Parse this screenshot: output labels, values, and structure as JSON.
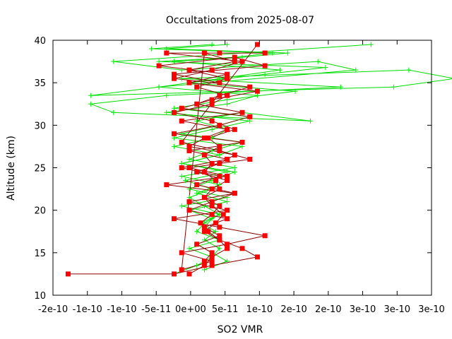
{
  "chart_data": {
    "type": "line",
    "title": "Occultations from 2025-08-07",
    "xlabel": "SO2 VMR",
    "ylabel": "Altitude (km)",
    "xlim": [
      -2e-10,
      3e-10
    ],
    "ylim": [
      10,
      40
    ],
    "grid": false,
    "legend": "none",
    "x_tick_labels": [
      "-2e-10",
      "-1e-10",
      "-1e-10",
      "-5e-11",
      "0e+00",
      "5e-11",
      "1e-10",
      "2e-10",
      "2e-10",
      "3e-10",
      "3e-10",
      "3e-10"
    ],
    "y_tick_labels": [
      "10",
      "15",
      "20",
      "25",
      "30",
      "35",
      "40"
    ],
    "series": [
      {
        "color": "#ff0000",
        "line_color": "#8b0000",
        "marker": "square",
        "profiles": [
          {
            "x": [
              -1.8e-10,
              -4e-11,
              1e-11,
              7e-11,
              5e-11,
              2e-11,
              0,
              1.5e-11,
              2.5e-11,
              1e-11,
              0,
              2e-11,
              1.5e-11,
              0,
              1e-11,
              0,
              2e-11,
              5e-12,
              4e-11,
              1e-11,
              -4e-11,
              1e-11,
              3e-11,
              -1e-11,
              3e-11,
              -2e-11,
              4e-11,
              0,
              -3e-11,
              1e-11,
              -3e-11,
              3e-11,
              8e-11,
              2e-11,
              -4e-11,
              3e-11,
              -2e-11,
              4e-11,
              -5e-11,
              3e-11,
              -2e-11,
              6e-11,
              2e-11,
              -3e-11,
              7e-11
            ],
            "y": [
              12.5,
              12.5,
              13.5,
              14.5,
              15.5,
              16.5,
              17.5,
              18.5,
              19.5,
              20.5,
              21.5,
              22.5,
              23.5,
              24.5,
              25.5,
              26.5,
              27.5,
              28.5,
              29.5,
              30.5,
              31.5,
              32.5,
              33.5,
              34.5,
              35.5,
              36.5,
              37.5,
              38.5,
              13,
              14,
              15,
              16,
              17,
              18,
              19,
              20,
              21,
              22,
              23,
              24,
              25,
              26,
              27,
              28,
              39.5
            ]
          },
          {
            "x": [
              -2e-11,
              0,
              1e-11,
              3e-11,
              2e-11,
              5e-12,
              -5e-12,
              1e-11,
              2e-11,
              0,
              1e-11,
              3e-11,
              -1e-11,
              2e-11,
              4e-11,
              -2e-11,
              0,
              3e-11,
              -3e-11,
              5e-11,
              -1e-11,
              2e-11,
              6e-11,
              -4e-11,
              1e-11,
              5e-11,
              -5e-11,
              2e-11,
              8e-11
            ],
            "y": [
              12.5,
              13.5,
              14.5,
              15.5,
              16.5,
              17.5,
              18.5,
              19.5,
              20.5,
              21.5,
              22.5,
              23.5,
              24.5,
              25.5,
              26.5,
              27.5,
              28.5,
              29.5,
              30.5,
              31.5,
              32.5,
              33.5,
              34.5,
              35.5,
              36.5,
              37.5,
              38.5,
              38.5,
              38.5
            ]
          },
          {
            "x": [
              0,
              1e-11,
              -1e-11,
              2e-11,
              0,
              3e-11,
              -2e-11,
              1e-11,
              4e-11,
              -1e-11,
              2e-11,
              -3e-11,
              3e-11,
              -2e-11,
              5e-11,
              -4e-11,
              2e-11,
              6e-11,
              -3e-11,
              1e-11,
              7e-11,
              -2e-11,
              3e-11,
              -6e-11,
              4e-11,
              8e-11,
              -4e-11,
              2e-11
            ],
            "y": [
              14,
              15,
              16,
              17,
              18,
              19,
              20,
              21,
              22,
              23,
              24,
              25,
              26,
              27,
              28,
              29,
              30,
              31,
              32,
              33,
              34,
              35,
              36,
              37,
              38,
              37,
              36,
              35
            ]
          }
        ]
      },
      {
        "color": "#00ee00",
        "line_color": "#00dd00",
        "marker": "plus",
        "profiles": [
          {
            "x": [
              -4e-11,
              -1e-11,
              1e-11,
              2e-11,
              0,
              1.5e-11,
              -5e-12,
              2e-11,
              0,
              -2e-11,
              1e-11,
              -2.5e-11,
              3e-11,
              -3e-11,
              2e-11,
              -4e-11,
              1e-11,
              3e-11,
              -1e-11,
              5e-11,
              1.4e-10,
              -1.2e-10,
              -1.5e-10,
              -5e-11,
              1.8e-10,
              -3e-11,
              2.7e-10,
              3.3e-10,
              2.5e-10,
              -1.5e-10,
              -6e-11,
              2e-10,
              1.5e-10,
              -3e-11,
              -1.2e-10,
              2.2e-10
            ],
            "y": [
              12.5,
              13.5,
              14.5,
              15.5,
              16.5,
              17.5,
              18.5,
              19.5,
              20.5,
              21.5,
              22.5,
              23.5,
              24.5,
              25.5,
              26.5,
              27.5,
              28.5,
              29.5,
              30.5,
              31.5,
              30.5,
              31.5,
              32.5,
              33.5,
              34.5,
              35.5,
              36.5,
              35.5,
              34.5,
              33.5,
              34.5,
              36.5,
              37.5,
              36.5,
              37.5,
              39.5
            ]
          },
          {
            "x": [
              0,
              3e-11,
              1e-11,
              -1e-11,
              2e-11,
              0,
              1e-11,
              -2e-11,
              3e-11,
              -1e-11,
              2e-11,
              -3e-11,
              4e-11,
              -2e-11,
              1e-11,
              5e-11,
              -3e-11,
              2e-11,
              6e-11,
              -4e-11,
              3e-11,
              1.2e-10,
              -2e-11,
              8e-11,
              1.6e-10,
              -6e-11,
              4e-11,
              9e-11,
              -7e-11,
              1e-11
            ],
            "y": [
              13,
              14,
              15,
              16,
              17,
              18,
              19,
              20,
              21,
              22,
              23,
              24,
              25,
              26,
              27,
              28,
              29,
              30,
              31,
              32,
              33,
              34,
              35,
              36,
              36.8,
              37.5,
              38,
              38.5,
              39,
              39.5
            ]
          },
          {
            "x": [
              1e-11,
              -2e-11,
              2e-11,
              -1e-11,
              0,
              2e-11,
              -3e-11,
              3e-11,
              -2e-11,
              1e-11,
              4e-11,
              -3e-11,
              2e-11,
              5e-11,
              -4e-11,
              1e-11,
              6e-11,
              -5e-11,
              3e-11,
              7e-11,
              -6e-11,
              2e-11,
              1e-10,
              -4e-11,
              5e-11,
              1.1e-10,
              -5e-11,
              3e-11
            ],
            "y": [
              14.5,
              15.5,
              16.5,
              17.5,
              18.5,
              19.5,
              20.5,
              21.5,
              22.5,
              23.5,
              24.5,
              25.5,
              26.5,
              27.5,
              28.5,
              29.5,
              30.5,
              31.5,
              32.5,
              33.5,
              34.5,
              35.5,
              36.5,
              37.5,
              38,
              38.5,
              39,
              39.5
            ]
          }
        ]
      }
    ]
  }
}
